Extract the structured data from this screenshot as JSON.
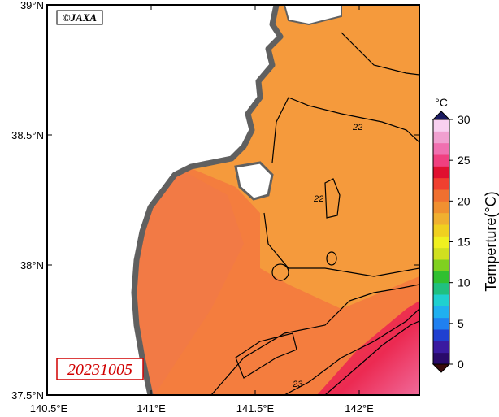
{
  "credit": "©JAXA",
  "date_label": "20231005",
  "lat_labels": [
    "39°N",
    "38.5°N",
    "38°N",
    "37.5°N"
  ],
  "lon_labels": [
    "140.5°E",
    "141°E",
    "141.5°E",
    "142°E"
  ],
  "colorbar": {
    "unit": "°C",
    "title": "Temperture(°C)",
    "ticks": [
      "0",
      "5",
      "10",
      "15",
      "20",
      "25",
      "30"
    ],
    "colors": [
      "#2a0a6a",
      "#3a1aa0",
      "#2040d0",
      "#2080f0",
      "#20b0f0",
      "#20d0d0",
      "#20c080",
      "#30c030",
      "#80d020",
      "#d0e020",
      "#f0f020",
      "#f0d020",
      "#f0b030",
      "#f09030",
      "#f07030",
      "#f04030",
      "#e01030",
      "#f04080",
      "#f070b0",
      "#f0a0d0",
      "#f8d0f0"
    ]
  },
  "contours": [
    "22",
    "22",
    "23"
  ],
  "colors": {
    "ocean_main": "#f59a3c",
    "ocean_warm": "#f47a3c",
    "land": "#ffffff",
    "coast": "#606060",
    "hot": "#e8285a"
  }
}
